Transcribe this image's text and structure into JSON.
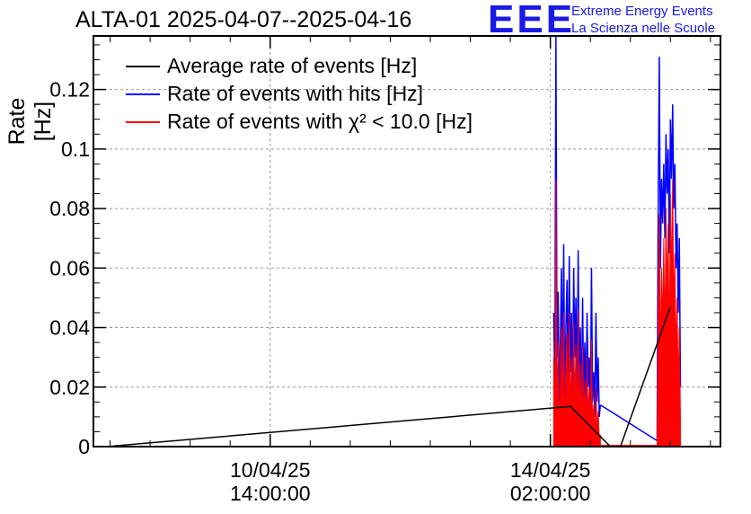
{
  "header": {
    "title": "ALTA-01 2025-04-07--2025-04-16",
    "logo_text": "EEE",
    "org_line1": "Extreme Energy Events",
    "org_line2": "La Scienza nelle Scuole"
  },
  "chart_data": {
    "type": "line",
    "title": "ALTA-01 2025-04-07--2025-04-16",
    "ylabel": "Rate [Hz]",
    "xlabel": "",
    "ylim": [
      0,
      0.138
    ],
    "xlim": [
      "2025-04-08 09:00",
      "2025-04-16 05:00"
    ],
    "grid": true,
    "legend_position": "top-left",
    "yticks": [
      "0",
      "0.02",
      "0.04",
      "0.06",
      "0.08",
      "0.1",
      "0.12"
    ],
    "yticks_values": [
      0,
      0.02,
      0.04,
      0.06,
      0.08,
      0.1,
      0.12
    ],
    "xticks": [
      {
        "x": "2025-04-10 14:00",
        "label1": "10/04/25",
        "label2": "14:00:00"
      },
      {
        "x": "2025-04-14 02:00",
        "label1": "14/04/25",
        "label2": "02:00:00"
      }
    ],
    "series": [
      {
        "name": "Average rate of events [Hz]",
        "color": "#000000",
        "x": [
          "2025-04-08 13:00",
          "2025-04-14 08:00",
          "2025-04-14 20:00",
          "2025-04-14 23:00",
          "2025-04-15 14:00"
        ],
        "values": [
          0,
          0.0135,
          0.0,
          0.0,
          0.047
        ]
      },
      {
        "name": "Rate of events with hits [Hz]",
        "color": "#0000ff",
        "x": [
          "2025-04-14 03:00",
          "2025-04-14 03:20",
          "2025-04-14 03:40",
          "2025-04-14 04:00",
          "2025-04-14 04:20",
          "2025-04-14 04:40",
          "2025-04-14 05:00",
          "2025-04-14 05:20",
          "2025-04-14 05:40",
          "2025-04-14 06:00",
          "2025-04-14 06:20",
          "2025-04-14 06:40",
          "2025-04-14 07:00",
          "2025-04-14 07:20",
          "2025-04-14 07:40",
          "2025-04-14 08:00",
          "2025-04-14 08:20",
          "2025-04-14 08:40",
          "2025-04-14 09:00",
          "2025-04-14 09:20",
          "2025-04-14 09:40",
          "2025-04-14 10:00",
          "2025-04-14 10:20",
          "2025-04-14 10:40",
          "2025-04-14 11:00",
          "2025-04-14 11:20",
          "2025-04-14 11:40",
          "2025-04-14 12:00",
          "2025-04-14 12:20",
          "2025-04-14 12:40",
          "2025-04-14 13:00",
          "2025-04-14 13:20",
          "2025-04-14 13:40",
          "2025-04-14 14:00",
          "2025-04-14 14:20",
          "2025-04-14 14:40",
          "2025-04-14 15:00",
          "2025-04-14 15:20",
          "2025-04-14 15:40",
          "2025-04-14 16:00",
          "2025-04-14 16:20",
          "2025-04-14 16:40",
          "2025-04-14 17:00",
          "2025-04-15 10:00",
          "2025-04-15 10:20",
          "2025-04-15 10:40",
          "2025-04-15 11:00",
          "2025-04-15 11:20",
          "2025-04-15 11:40",
          "2025-04-15 12:00",
          "2025-04-15 12:20",
          "2025-04-15 12:40",
          "2025-04-15 13:00",
          "2025-04-15 13:20",
          "2025-04-15 13:40",
          "2025-04-15 14:00",
          "2025-04-15 14:20",
          "2025-04-15 14:40",
          "2025-04-15 15:00",
          "2025-04-15 15:20",
          "2025-04-15 15:40",
          "2025-04-15 16:00",
          "2025-04-15 16:20",
          "2025-04-15 16:40",
          "2025-04-15 17:00"
        ],
        "values": [
          0.045,
          0.02,
          0.138,
          0.03,
          0.052,
          0.012,
          0.035,
          0.06,
          0.02,
          0.068,
          0.01,
          0.04,
          0.056,
          0.018,
          0.064,
          0.025,
          0.045,
          0.015,
          0.06,
          0.03,
          0.05,
          0.012,
          0.066,
          0.02,
          0.04,
          0.01,
          0.05,
          0.015,
          0.035,
          0.012,
          0.045,
          0.02,
          0.03,
          0.01,
          0.06,
          0.015,
          0.025,
          0.01,
          0.045,
          0.015,
          0.03,
          0.01,
          0.014,
          0.002,
          0.08,
          0.131,
          0.06,
          0.09,
          0.075,
          0.095,
          0.07,
          0.105,
          0.085,
          0.1,
          0.065,
          0.11,
          0.09,
          0.115,
          0.08,
          0.095,
          0.06,
          0.075,
          0.045,
          0.07,
          0.02
        ],
        "extra_trend": {
          "x": [
            "2025-04-14 17:00",
            "2025-04-15 10:00"
          ],
          "values": [
            0.014,
            0.002
          ]
        }
      },
      {
        "name": "Rate of events with χ² < 10.0 [Hz]",
        "color": "#ff0000",
        "x": [
          "2025-04-14 03:00",
          "2025-04-14 03:20",
          "2025-04-14 03:40",
          "2025-04-14 04:00",
          "2025-04-14 04:20",
          "2025-04-14 04:40",
          "2025-04-14 05:00",
          "2025-04-14 05:20",
          "2025-04-14 05:40",
          "2025-04-14 06:00",
          "2025-04-14 06:20",
          "2025-04-14 06:40",
          "2025-04-14 07:00",
          "2025-04-14 07:20",
          "2025-04-14 07:40",
          "2025-04-14 08:00",
          "2025-04-14 08:20",
          "2025-04-14 08:40",
          "2025-04-14 09:00",
          "2025-04-14 09:20",
          "2025-04-14 09:40",
          "2025-04-14 10:00",
          "2025-04-14 10:20",
          "2025-04-14 10:40",
          "2025-04-14 11:00",
          "2025-04-14 11:20",
          "2025-04-14 11:40",
          "2025-04-14 12:00",
          "2025-04-14 12:20",
          "2025-04-14 12:40",
          "2025-04-14 13:00",
          "2025-04-14 13:20",
          "2025-04-14 13:40",
          "2025-04-14 14:00",
          "2025-04-14 14:20",
          "2025-04-14 14:40",
          "2025-04-14 15:00",
          "2025-04-14 15:20",
          "2025-04-14 15:40",
          "2025-04-14 16:00",
          "2025-04-14 16:20",
          "2025-04-14 16:40",
          "2025-04-14 17:00",
          "2025-04-15 10:00",
          "2025-04-15 10:20",
          "2025-04-15 10:40",
          "2025-04-15 11:00",
          "2025-04-15 11:20",
          "2025-04-15 11:40",
          "2025-04-15 12:00",
          "2025-04-15 12:20",
          "2025-04-15 12:40",
          "2025-04-15 13:00",
          "2025-04-15 13:20",
          "2025-04-15 13:40",
          "2025-04-15 14:00",
          "2025-04-15 14:20",
          "2025-04-15 14:40",
          "2025-04-15 15:00",
          "2025-04-15 15:20",
          "2025-04-15 15:40",
          "2025-04-15 16:00",
          "2025-04-15 16:20",
          "2025-04-15 16:40",
          "2025-04-15 17:00"
        ],
        "values": [
          0.03,
          0.008,
          0.09,
          0.012,
          0.035,
          0.005,
          0.02,
          0.04,
          0.01,
          0.045,
          0.004,
          0.025,
          0.038,
          0.008,
          0.045,
          0.012,
          0.03,
          0.006,
          0.042,
          0.015,
          0.034,
          0.005,
          0.046,
          0.01,
          0.028,
          0.004,
          0.034,
          0.008,
          0.022,
          0.005,
          0.03,
          0.01,
          0.02,
          0.004,
          0.036,
          0.006,
          0.014,
          0.003,
          0.02,
          0.005,
          0.012,
          0.003,
          0.004,
          0.0,
          0.045,
          0.078,
          0.03,
          0.06,
          0.04,
          0.07,
          0.035,
          0.08,
          0.05,
          0.075,
          0.03,
          0.085,
          0.055,
          0.09,
          0.045,
          0.065,
          0.03,
          0.05,
          0.02,
          0.04,
          0.01
        ]
      }
    ]
  }
}
